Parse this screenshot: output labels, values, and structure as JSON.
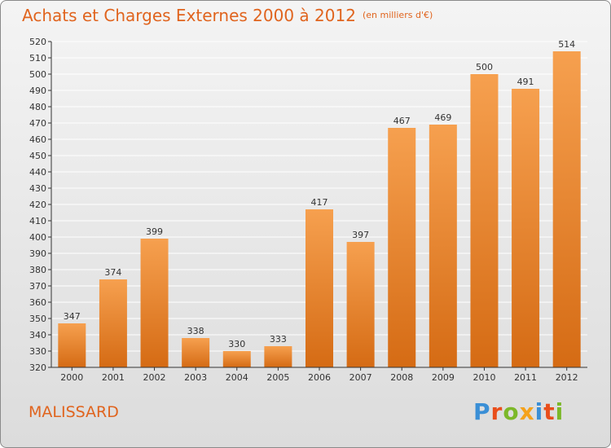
{
  "header": {
    "title": "Achats et Charges Externes 2000 à 2012",
    "subtitle": "(en milliers d'€)"
  },
  "footer": {
    "commune": "MALISSARD",
    "brand": "Proxiti"
  },
  "colors": {
    "bar_light": "#f6a04f",
    "bar_dark": "#d56b14",
    "title": "#e0641e",
    "grid": "#ffffff",
    "axis": "#333333"
  },
  "chart_data": {
    "type": "bar",
    "title": "Achats et Charges Externes 2000 à 2012",
    "subtitle": "(en milliers d'€)",
    "categories": [
      "2000",
      "2001",
      "2002",
      "2003",
      "2004",
      "2005",
      "2006",
      "2007",
      "2008",
      "2009",
      "2010",
      "2011",
      "2012"
    ],
    "values": [
      347,
      374,
      399,
      338,
      330,
      333,
      417,
      397,
      467,
      469,
      500,
      491,
      514
    ],
    "ylim": [
      320,
      520
    ],
    "yticks": [
      320,
      330,
      340,
      350,
      360,
      370,
      380,
      390,
      400,
      410,
      420,
      430,
      440,
      450,
      460,
      470,
      480,
      490,
      500,
      510,
      520
    ],
    "grid": true,
    "data_labels": true
  }
}
